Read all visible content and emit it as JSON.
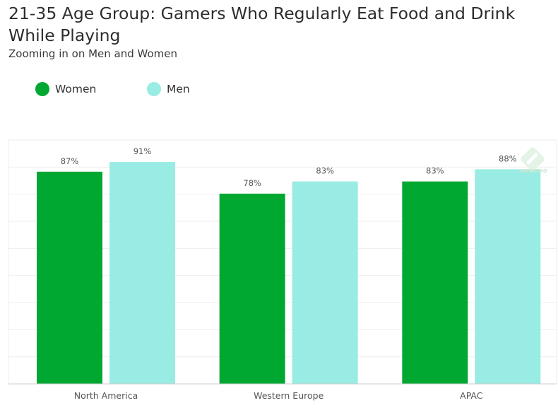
{
  "title": "21-35 Age Group: Gamers Who Regularly Eat Food and Drink While Playing",
  "subtitle": "Zooming in on Men and Women",
  "legend": [
    {
      "label": "Women",
      "color": "#00a832"
    },
    {
      "label": "Men",
      "color": "#99ece4"
    }
  ],
  "watermark": {
    "text": "newzoo",
    "icon": "newzoo-logo-icon"
  },
  "chart_data": {
    "type": "bar",
    "title": "21-35 Age Group: Gamers Who Regularly Eat Food and Drink While Playing",
    "subtitle": "Zooming in on Men and Women",
    "categories": [
      "North America",
      "Western Europe",
      "APAC"
    ],
    "series": [
      {
        "name": "Women",
        "color": "#00a832",
        "values": [
          87,
          78,
          83
        ],
        "labels": [
          "87%",
          "78%",
          "83%"
        ]
      },
      {
        "name": "Men",
        "color": "#99ece4",
        "values": [
          91,
          83,
          88
        ],
        "labels": [
          "91%",
          "83%",
          "88%"
        ]
      }
    ],
    "xlabel": "",
    "ylabel": "",
    "ylim": [
      0,
      100
    ],
    "grid": true,
    "legend_position": "top-left"
  }
}
